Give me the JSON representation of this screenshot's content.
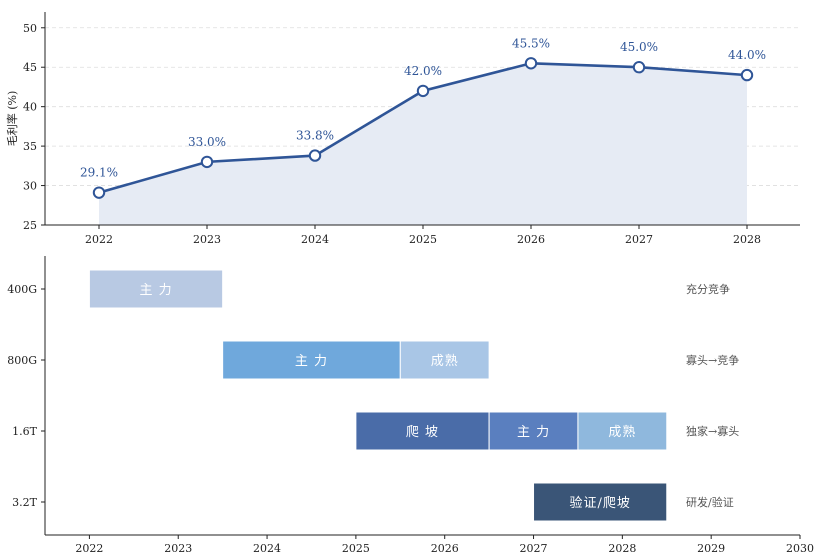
{
  "chart_data": [
    {
      "type": "line",
      "x": [
        "2022",
        "2023",
        "2024",
        "2025",
        "2026",
        "2027",
        "2028"
      ],
      "series": [
        {
          "values": [
            29.1,
            33.0,
            33.8,
            42.0,
            45.5,
            45.0,
            44.0
          ]
        }
      ],
      "data_labels": [
        "29.1%",
        "33.0%",
        "33.8%",
        "42.0%",
        "45.5%",
        "45.0%",
        "44.0%"
      ],
      "ylabel": "毛利率 (%)",
      "ylim": [
        25,
        52
      ],
      "yticks": [
        "25",
        "30",
        "35",
        "40",
        "45",
        "50"
      ],
      "grid": true,
      "fill_under": true,
      "line_color": "#2f5597",
      "fill_color": "#e6ebf4"
    },
    {
      "type": "gantt",
      "rows": [
        "400G",
        "800G",
        "1.6T",
        "3.2T"
      ],
      "xticks": [
        "2022",
        "2023",
        "2024",
        "2025",
        "2026",
        "2027",
        "2028",
        "2029",
        "2030"
      ],
      "xlim": [
        2021.5,
        2030
      ],
      "bars": [
        {
          "row": 0,
          "start": 2022.0,
          "end": 2023.5,
          "label": "主 力",
          "color": "#b8c9e3"
        },
        {
          "row": 1,
          "start": 2023.5,
          "end": 2025.5,
          "label": "主 力",
          "color": "#6fa8dc"
        },
        {
          "row": 1,
          "start": 2025.5,
          "end": 2026.5,
          "label": "成熟",
          "color": "#a9c6e6"
        },
        {
          "row": 2,
          "start": 2025.0,
          "end": 2026.5,
          "label": "爬 坡",
          "color": "#4a6ca8"
        },
        {
          "row": 2,
          "start": 2026.5,
          "end": 2027.5,
          "label": "主 力",
          "color": "#5a7fbf"
        },
        {
          "row": 2,
          "start": 2027.5,
          "end": 2028.5,
          "label": "成熟",
          "color": "#8fb8dd"
        },
        {
          "row": 3,
          "start": 2027.0,
          "end": 2028.5,
          "label": "验证/爬坡",
          "color": "#3a5577"
        }
      ],
      "annotations": [
        "充分竞争",
        "寡头→竞争",
        "独家→寡头",
        "研发/验证"
      ]
    }
  ]
}
